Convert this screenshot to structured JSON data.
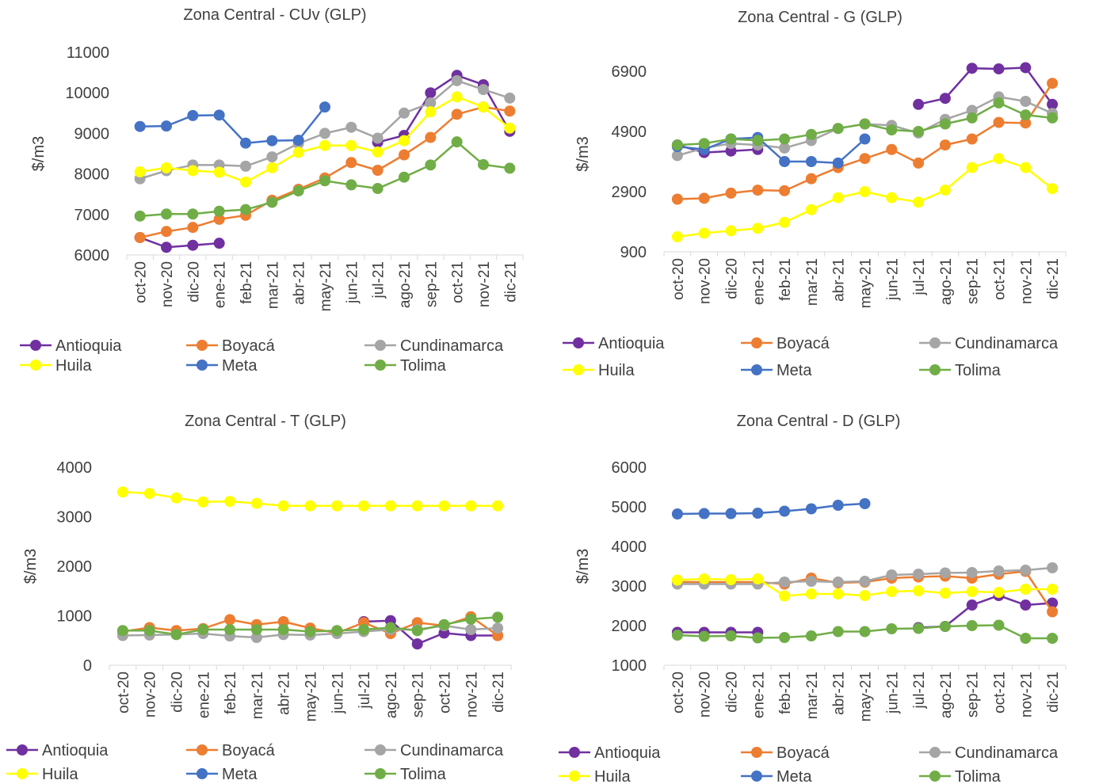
{
  "chart_data": [
    {
      "type": "line",
      "title": "Zona Central - CUv (GLP)",
      "y_label": "$/m3",
      "categories": [
        "oct-20",
        "nov-20",
        "dic-20",
        "ene-21",
        "feb-21",
        "mar-21",
        "abr-21",
        "may-21",
        "jun-21",
        "jul-21",
        "ago-21",
        "sep-21",
        "oct-21",
        "nov-21",
        "dic-21"
      ],
      "ylim": [
        6000,
        11000
      ],
      "yticks": [
        6000,
        7000,
        8000,
        9000,
        10000,
        11000
      ],
      "series": [
        {
          "name": "Antioquia",
          "color": "#7030a0",
          "values": [
            6430,
            6190,
            6240,
            6290,
            null,
            null,
            null,
            null,
            null,
            8780,
            8950,
            10000,
            10430,
            10200,
            9050
          ]
        },
        {
          "name": "Boyacá",
          "color": "#ed7d31",
          "values": [
            6430,
            6580,
            6680,
            6880,
            6980,
            7350,
            7620,
            7900,
            8280,
            8090,
            8470,
            8900,
            9470,
            9650,
            9550
          ]
        },
        {
          "name": "Cundinamarca",
          "color": "#a5a5a5",
          "values": [
            7880,
            8080,
            8220,
            8220,
            8190,
            8420,
            8750,
            9000,
            9150,
            8880,
            9500,
            9750,
            10300,
            10080,
            9870
          ]
        },
        {
          "name": "Huila",
          "color": "#ffff00",
          "values": [
            8050,
            8150,
            8080,
            8040,
            7800,
            8150,
            8530,
            8700,
            8700,
            8540,
            8820,
            9530,
            9900,
            9650,
            9130
          ]
        },
        {
          "name": "Meta",
          "color": "#4472c4",
          "values": [
            9170,
            9180,
            9440,
            9450,
            8760,
            8820,
            8830,
            9650,
            null,
            null,
            null,
            null,
            null,
            null,
            null
          ]
        },
        {
          "name": "Tolima",
          "color": "#70ad47",
          "values": [
            6960,
            7010,
            7010,
            7080,
            7120,
            7300,
            7580,
            7830,
            7730,
            7640,
            7920,
            8220,
            8790,
            8230,
            8140
          ]
        }
      ]
    },
    {
      "type": "line",
      "title": "Zona Central - G (GLP)",
      "y_label": "$/m3",
      "categories": [
        "oct-20",
        "nov-20",
        "dic-20",
        "ene-21",
        "feb-21",
        "mar-21",
        "abr-21",
        "may-21",
        "jun-21",
        "jul-21",
        "ago-21",
        "sep-21",
        "oct-21",
        "nov-21",
        "dic-21"
      ],
      "ylim": [
        900,
        7400
      ],
      "yticks": [
        900,
        2900,
        4900,
        6900
      ],
      "series": [
        {
          "name": "Antioquia",
          "color": "#7030a0",
          "values": [
            4450,
            4200,
            4250,
            4300,
            null,
            null,
            null,
            null,
            null,
            5800,
            6000,
            7000,
            6980,
            7020,
            5800
          ]
        },
        {
          "name": "Boyacá",
          "color": "#ed7d31",
          "values": [
            2650,
            2680,
            2850,
            2950,
            2930,
            3330,
            3700,
            4000,
            4300,
            3850,
            4450,
            4650,
            5200,
            5180,
            6500
          ]
        },
        {
          "name": "Cundinamarca",
          "color": "#a5a5a5",
          "values": [
            4100,
            4350,
            4500,
            4450,
            4350,
            4600,
            5000,
            5150,
            5100,
            4850,
            5300,
            5600,
            6050,
            5900,
            5500
          ]
        },
        {
          "name": "Huila",
          "color": "#ffff00",
          "values": [
            1400,
            1520,
            1600,
            1680,
            1880,
            2300,
            2700,
            2900,
            2700,
            2550,
            2950,
            3700,
            4000,
            3700,
            3000
          ]
        },
        {
          "name": "Meta",
          "color": "#4472c4",
          "values": [
            4400,
            4300,
            4650,
            4700,
            3900,
            3900,
            3850,
            4650,
            null,
            null,
            null,
            null,
            null,
            null,
            null
          ]
        },
        {
          "name": "Tolima",
          "color": "#70ad47",
          "values": [
            4450,
            4500,
            4650,
            4600,
            4650,
            4800,
            5000,
            5150,
            4950,
            4900,
            5150,
            5350,
            5850,
            5450,
            5350
          ]
        }
      ]
    },
    {
      "type": "line",
      "title": "Zona Central - T (GLP)",
      "y_label": "$/m3",
      "categories": [
        "oct-20",
        "nov-20",
        "dic-20",
        "ene-21",
        "feb-21",
        "mar-21",
        "abr-21",
        "may-21",
        "jun-21",
        "jul-21",
        "ago-21",
        "sep-21",
        "oct-21",
        "nov-21",
        "dic-21"
      ],
      "ylim": [
        0,
        4000
      ],
      "yticks": [
        0,
        1000,
        2000,
        3000,
        4000
      ],
      "series": [
        {
          "name": "Antioquia",
          "color": "#7030a0",
          "values": [
            null,
            null,
            null,
            null,
            null,
            null,
            null,
            null,
            null,
            880,
            900,
            430,
            650,
            600,
            600
          ]
        },
        {
          "name": "Boyacá",
          "color": "#ed7d31",
          "values": [
            680,
            760,
            700,
            740,
            920,
            820,
            880,
            750,
            650,
            860,
            640,
            860,
            800,
            980,
            600
          ]
        },
        {
          "name": "Cundinamarca",
          "color": "#a5a5a5",
          "values": [
            600,
            610,
            620,
            640,
            590,
            560,
            620,
            610,
            640,
            680,
            720,
            720,
            800,
            720,
            750
          ]
        },
        {
          "name": "Huila",
          "color": "#ffff00",
          "values": [
            3500,
            3470,
            3380,
            3300,
            3310,
            3270,
            3220,
            3220,
            3220,
            3220,
            3220,
            3220,
            3220,
            3220,
            3220
          ]
        },
        {
          "name": "Meta",
          "color": "#4472c4",
          "values": [
            null,
            null,
            null,
            null,
            null,
            null,
            null,
            null,
            null,
            null,
            null,
            null,
            null,
            null,
            null
          ]
        },
        {
          "name": "Tolima",
          "color": "#70ad47",
          "values": [
            700,
            700,
            620,
            720,
            720,
            720,
            720,
            680,
            700,
            720,
            760,
            700,
            820,
            930,
            970
          ]
        }
      ]
    },
    {
      "type": "line",
      "title": "Zona Central - D (GLP)",
      "y_label": "$/m3",
      "categories": [
        "oct-20",
        "nov-20",
        "dic-20",
        "ene-21",
        "feb-21",
        "mar-21",
        "abr-21",
        "may-21",
        "jun-21",
        "jul-21",
        "ago-21",
        "sep-21",
        "oct-21",
        "nov-21",
        "dic-21"
      ],
      "ylim": [
        1000,
        6000
      ],
      "yticks": [
        1000,
        2000,
        3000,
        4000,
        5000,
        6000
      ],
      "series": [
        {
          "name": "Antioquia",
          "color": "#7030a0",
          "values": [
            1830,
            1830,
            1830,
            1830,
            null,
            null,
            null,
            null,
            null,
            1950,
            1980,
            2520,
            2760,
            2520,
            2570
          ]
        },
        {
          "name": "Boyacá",
          "color": "#ed7d31",
          "values": [
            3100,
            3100,
            3100,
            3100,
            3050,
            3200,
            3080,
            3100,
            3200,
            3230,
            3250,
            3200,
            3300,
            3370,
            2350
          ]
        },
        {
          "name": "Cundinamarca",
          "color": "#a5a5a5",
          "values": [
            3050,
            3050,
            3050,
            3050,
            3100,
            3120,
            3100,
            3120,
            3280,
            3300,
            3330,
            3340,
            3380,
            3400,
            3460
          ]
        },
        {
          "name": "Huila",
          "color": "#ffff00",
          "values": [
            3150,
            3180,
            3160,
            3180,
            2750,
            2800,
            2800,
            2760,
            2860,
            2880,
            2820,
            2860,
            2840,
            2920,
            2920
          ]
        },
        {
          "name": "Meta",
          "color": "#4472c4",
          "values": [
            4820,
            4830,
            4830,
            4840,
            4890,
            4950,
            5040,
            5080,
            null,
            null,
            null,
            null,
            null,
            null,
            null
          ]
        },
        {
          "name": "Tolima",
          "color": "#70ad47",
          "values": [
            1760,
            1730,
            1740,
            1690,
            1700,
            1740,
            1850,
            1850,
            1920,
            1930,
            1980,
            2000,
            2010,
            1680,
            1680
          ]
        }
      ]
    }
  ]
}
